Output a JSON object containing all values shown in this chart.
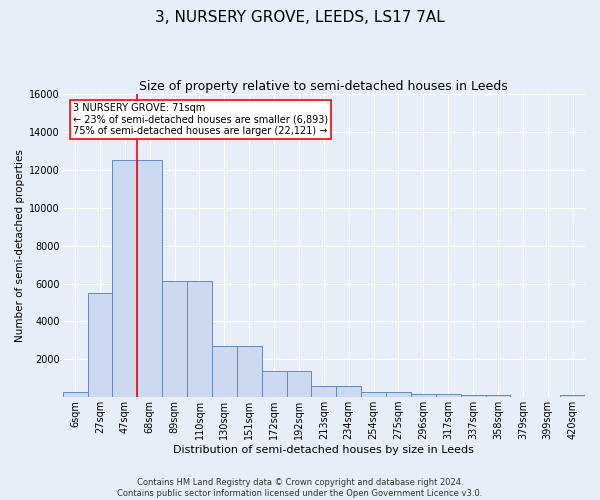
{
  "title": "3, NURSERY GROVE, LEEDS, LS17 7AL",
  "subtitle": "Size of property relative to semi-detached houses in Leeds",
  "xlabel": "Distribution of semi-detached houses by size in Leeds",
  "ylabel": "Number of semi-detached properties",
  "bar_labels": [
    "6sqm",
    "27sqm",
    "47sqm",
    "68sqm",
    "89sqm",
    "110sqm",
    "130sqm",
    "151sqm",
    "172sqm",
    "192sqm",
    "213sqm",
    "234sqm",
    "254sqm",
    "275sqm",
    "296sqm",
    "317sqm",
    "337sqm",
    "358sqm",
    "379sqm",
    "399sqm",
    "420sqm"
  ],
  "bar_heights": [
    250,
    5500,
    12500,
    12500,
    6150,
    6150,
    2700,
    2700,
    1380,
    1380,
    580,
    580,
    275,
    275,
    175,
    175,
    100,
    100,
    0,
    0,
    130
  ],
  "bar_color": "#ccd9f0",
  "bar_edge_color": "#6688bb",
  "red_line_bin": 2.5,
  "annotation_line1": "3 NURSERY GROVE: 71sqm",
  "annotation_line2": "← 23% of semi-detached houses are smaller (6,893)",
  "annotation_line3": "75% of semi-detached houses are larger (22,121) →",
  "footer_line1": "Contains HM Land Registry data © Crown copyright and database right 2024.",
  "footer_line2": "Contains public sector information licensed under the Open Government Licence v3.0.",
  "ylim": [
    0,
    16000
  ],
  "yticks": [
    0,
    2000,
    4000,
    6000,
    8000,
    10000,
    12000,
    14000,
    16000
  ],
  "bg_color": "#e8eef8",
  "grid_color": "#ffffff",
  "title_fontsize": 11,
  "subtitle_fontsize": 9,
  "xlabel_fontsize": 8,
  "ylabel_fontsize": 7.5,
  "tick_fontsize": 7,
  "annot_fontsize": 7,
  "footer_fontsize": 6
}
